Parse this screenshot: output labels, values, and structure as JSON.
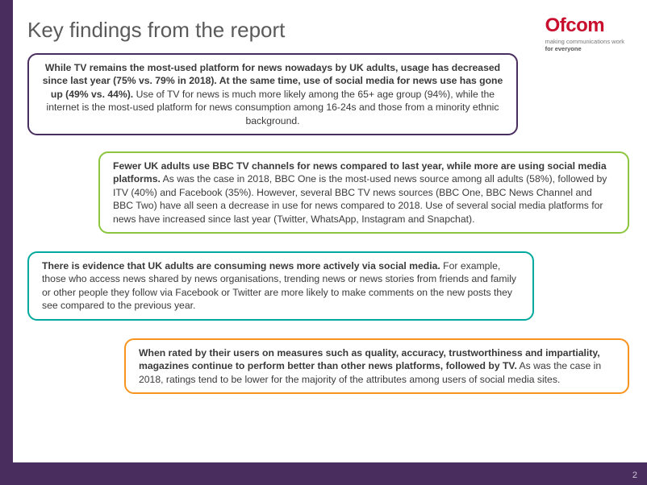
{
  "title": "Key findings from the report",
  "logo": {
    "name": "Ofcom",
    "tagline1": "making communications work",
    "tagline2": "for everyone"
  },
  "boxes": {
    "b1": {
      "lead": "While TV remains the most-used platform for news nowadays by UK adults, usage has decreased since last year (75% vs. 79% in 2018). At the same time, use of social media for news use has gone up (49% vs. 44%).",
      "rest": " Use of TV for news is much more likely among the 65+ age group (94%), while the internet is the most-used platform for news consumption among 16-24s and those from a minority ethnic background.",
      "border": "#4a2d5f"
    },
    "b2": {
      "lead": "Fewer UK adults use BBC TV channels for news compared to last year, while more are using social media platforms.",
      "rest": " As was the case in 2018, BBC One is the most-used news source among all adults (58%), followed by ITV (40%) and Facebook (35%). However, several BBC TV news sources (BBC One, BBC News Channel and BBC Two) have all seen a decrease in use for news compared to 2018. Use of several social media platforms for news have increased since last year (Twitter, WhatsApp, Instagram and Snapchat).",
      "border": "#8cc63f"
    },
    "b3": {
      "lead": "There is evidence that UK adults are consuming news more actively via social media.",
      "rest": " For example, those who access news shared by news organisations, trending news or news stories from friends and family or other people they follow via Facebook or Twitter are more likely to make comments on the new posts they see compared to the previous year.",
      "border": "#00a99d"
    },
    "b4": {
      "lead": "When rated by their users on measures such as quality, accuracy, trustworthiness and impartiality, magazines continue to perform better than other news platforms, followed by TV.",
      "rest": " As was the case in 2018, ratings tend to be lower for the majority of the attributes among users of social media sites.",
      "border": "#f7941d"
    }
  },
  "page_number": "2",
  "colors": {
    "brand_purple": "#4a2d5f",
    "ofcom_red": "#c8102e"
  }
}
